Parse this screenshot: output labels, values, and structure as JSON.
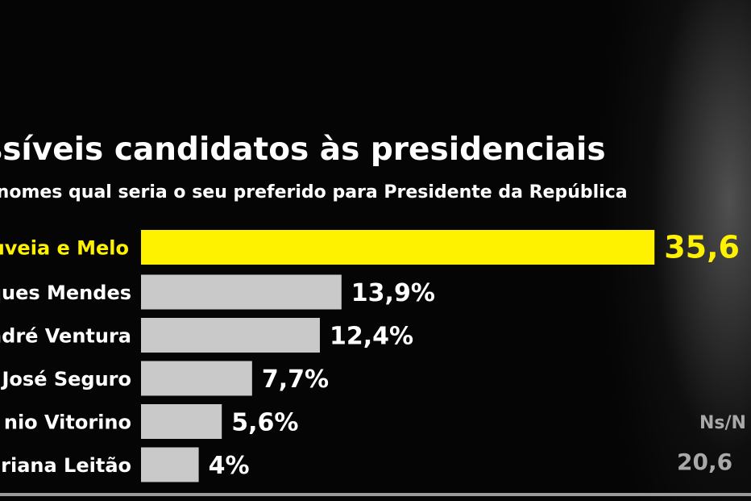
{
  "chart_data": {
    "type": "bar",
    "orientation": "horizontal",
    "title": "ssíveis candidatos às presidenciais",
    "subtitle": "es nomes qual seria o seu preferido para Presidente da República",
    "categories": [
      "uveia e Melo",
      "ques Mendes",
      "ndré Ventura",
      "José Seguro",
      "nio Vitorino",
      "ariana Leitão"
    ],
    "values": [
      35.6,
      13.9,
      12.4,
      7.7,
      5.6,
      4
    ],
    "value_labels": [
      "35,6",
      "13,9%",
      "12,4%",
      "7,7%",
      "5,6%",
      "4%"
    ],
    "highlight_index": 0,
    "grid": false,
    "legend": "none",
    "extra": {
      "label": "Ns/N",
      "value_label": "20,6"
    }
  },
  "colors": {
    "background": "#050505",
    "highlight_bar": "#fff200",
    "highlight_text": "#fff200",
    "bar": "#c9c9c9",
    "label_text": "#ffffff",
    "value_text": "#ffffff",
    "muted_text": "#a9a9a9"
  }
}
